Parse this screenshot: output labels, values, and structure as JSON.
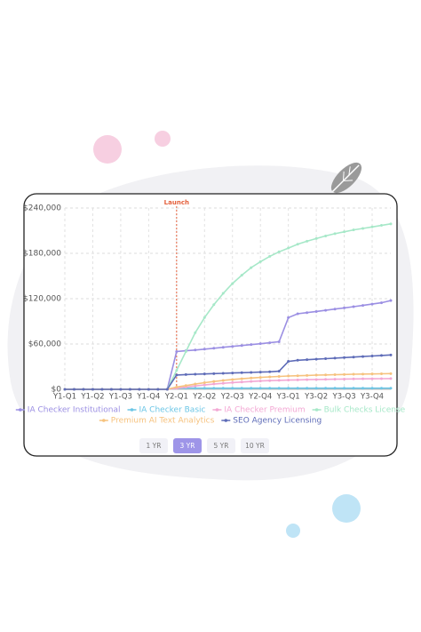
{
  "chart_data": {
    "type": "line",
    "categories": [
      "Y1-Q1",
      null,
      null,
      "Y1-Q2",
      null,
      null,
      "Y1-Q3",
      null,
      null,
      "Y1-Q4",
      null,
      null,
      "Y2-Q1",
      null,
      null,
      "Y2-Q2",
      null,
      null,
      "Y2-Q3",
      null,
      null,
      "Y2-Q4",
      null,
      null,
      "Y3-Q1",
      null,
      null,
      "Y3-Q2",
      null,
      null,
      "Y3-Q3",
      null,
      null,
      "Y3-Q4",
      null,
      null
    ],
    "series": [
      {
        "name": "IA Checker Institutional",
        "color": "#9b8fe3",
        "values": [
          0,
          0,
          0,
          0,
          0,
          0,
          0,
          0,
          0,
          0,
          0,
          0,
          50000,
          51000,
          52000,
          53200,
          54400,
          55600,
          56800,
          58000,
          59200,
          60400,
          61600,
          63000,
          95000,
          100000,
          101500,
          103000,
          104600,
          106200,
          107800,
          109400,
          111000,
          112800,
          114600,
          117500
        ]
      },
      {
        "name": "IA Checker Basic",
        "color": "#6cc6e6",
        "values": [
          0,
          0,
          0,
          0,
          0,
          0,
          0,
          0,
          0,
          0,
          0,
          0,
          1500,
          1500,
          1500,
          1500,
          1500,
          1500,
          1500,
          1500,
          1500,
          1500,
          1500,
          1500,
          1500,
          1500,
          1500,
          1500,
          1500,
          1500,
          1500,
          1500,
          1500,
          1500,
          1500,
          1500
        ]
      },
      {
        "name": "IA Checker Premium",
        "color": "#f3a8d4",
        "values": [
          0,
          0,
          0,
          0,
          0,
          0,
          0,
          0,
          0,
          0,
          0,
          0,
          1500,
          3000,
          4500,
          5800,
          7000,
          8000,
          8900,
          9700,
          10400,
          11000,
          11500,
          11900,
          12200,
          12500,
          12800,
          13000,
          13200,
          13400,
          13600,
          13800,
          13900,
          14000,
          14100,
          14200
        ]
      },
      {
        "name": "Bulk Checks License",
        "color": "#a6e8c8",
        "values": [
          0,
          0,
          0,
          0,
          0,
          0,
          0,
          0,
          0,
          0,
          0,
          0,
          25000,
          50000,
          75000,
          95000,
          112000,
          127000,
          140000,
          151000,
          161000,
          169000,
          176000,
          182000,
          187000,
          192000,
          196000,
          199500,
          203000,
          206000,
          208500,
          211000,
          213000,
          215000,
          217000,
          219000
        ]
      },
      {
        "name": "Premium AI Text Analytics",
        "color": "#f6c27e",
        "values": [
          0,
          0,
          0,
          0,
          0,
          0,
          0,
          0,
          0,
          0,
          0,
          0,
          3000,
          5000,
          7000,
          8800,
          10400,
          11800,
          13000,
          14000,
          15000,
          15800,
          16500,
          17100,
          17600,
          18000,
          18400,
          18800,
          19100,
          19400,
          19700,
          20000,
          20200,
          20400,
          20600,
          20800
        ]
      },
      {
        "name": "SEO Agency Licensing",
        "color": "#5e6cb8",
        "values": [
          0,
          0,
          0,
          0,
          0,
          0,
          0,
          0,
          0,
          0,
          0,
          0,
          19000,
          19500,
          20000,
          20400,
          20800,
          21200,
          21600,
          22000,
          22400,
          22800,
          23200,
          24000,
          37000,
          38500,
          39200,
          39900,
          40600,
          41300,
          42000,
          42700,
          43400,
          44100,
          44800,
          45500
        ]
      }
    ],
    "ylim": [
      0,
      240000
    ],
    "yticks": [
      {
        "value": 0,
        "label": "$0"
      },
      {
        "value": 60000,
        "label": "$60,000"
      },
      {
        "value": 120000,
        "label": "$120,000"
      },
      {
        "value": 180000,
        "label": "$180,000"
      },
      {
        "value": 240000,
        "label": "$240,000"
      }
    ],
    "grid": true,
    "annotation": {
      "text": "Launch",
      "x": "Y2-Q1",
      "color": "#e4603c"
    }
  },
  "controls": {
    "buttons": [
      "1 YR",
      "3 YR",
      "5 YR",
      "10 YR"
    ],
    "active": "3 YR"
  }
}
